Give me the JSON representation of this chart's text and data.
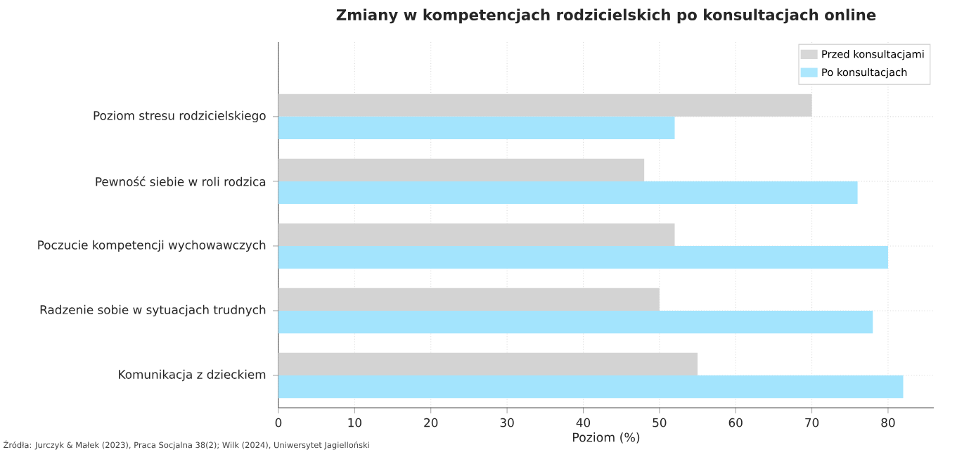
{
  "chart_data": {
    "type": "bar",
    "orientation": "horizontal",
    "title": "Zmiany w kompetencjach rodzicielskich po konsultacjach online",
    "xlabel": "Poziom (%)",
    "categories": [
      "Poziom stresu rodzicielskiego",
      "Pewność siebie w roli rodzica",
      "Poczucie kompetencji wychowawczych",
      "Radzenie sobie w sytuacjach trudnych",
      "Komunikacja z dzieckiem"
    ],
    "series": [
      {
        "name": "Przed konsultacjami",
        "color": "#d3d3d3",
        "values": [
          70,
          48,
          52,
          50,
          55
        ]
      },
      {
        "name": "Po konsultacjach",
        "color": "#a3e4fd",
        "values": [
          52,
          76,
          80,
          78,
          82
        ]
      }
    ],
    "xlim": [
      0,
      86
    ],
    "xticks": [
      0,
      10,
      20,
      30,
      40,
      50,
      60,
      70,
      80
    ],
    "grid": true,
    "legend": "top right",
    "annotations": [
      "Źródła: Jurczyk & Małek (2023), Praca Socjalna 38(2); Wilk (2024), Uniwersytet Jagielloński"
    ]
  }
}
